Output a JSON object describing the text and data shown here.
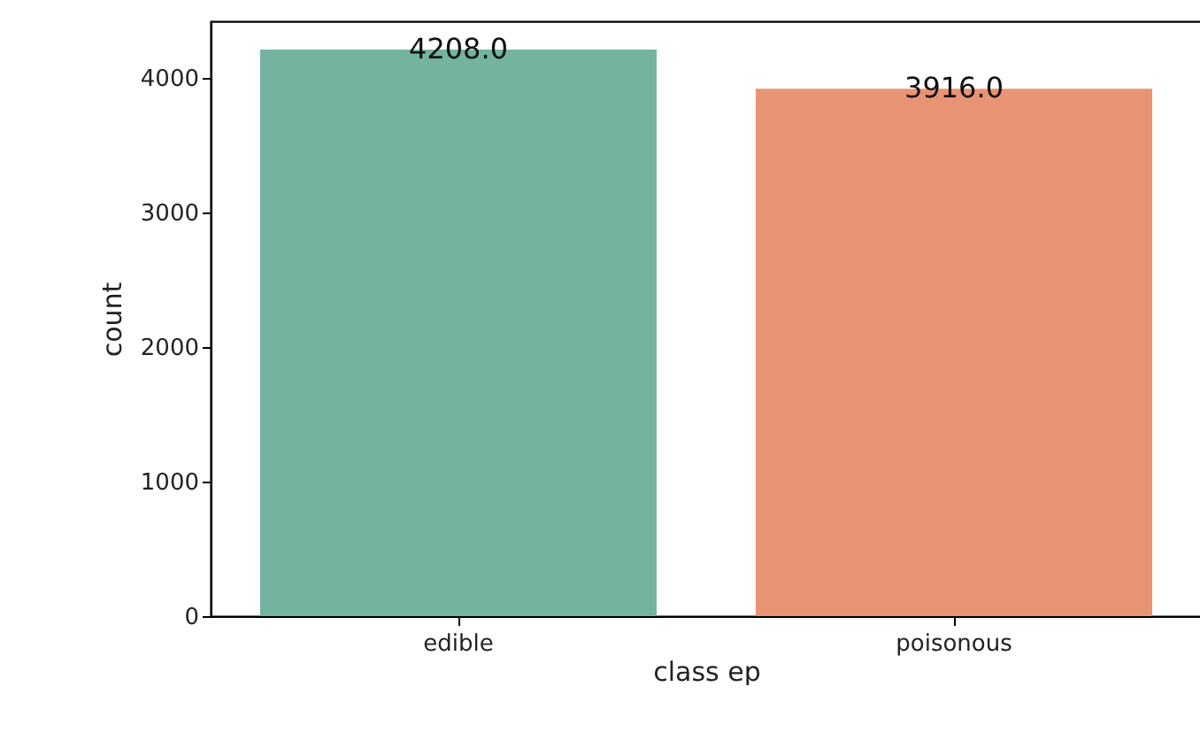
{
  "chart_data": {
    "type": "bar",
    "xlabel": "class ep",
    "ylabel": "count",
    "categories": [
      "edible",
      "poisonous"
    ],
    "values": [
      4208,
      3916
    ],
    "colors": [
      "#73b3a0",
      "#e89474"
    ],
    "value_labels": [
      "4208.0",
      "3916.0"
    ],
    "ylim": [
      0,
      4418
    ],
    "yticks": [
      0,
      1000,
      2000,
      3000,
      4000
    ],
    "grid": false
  }
}
